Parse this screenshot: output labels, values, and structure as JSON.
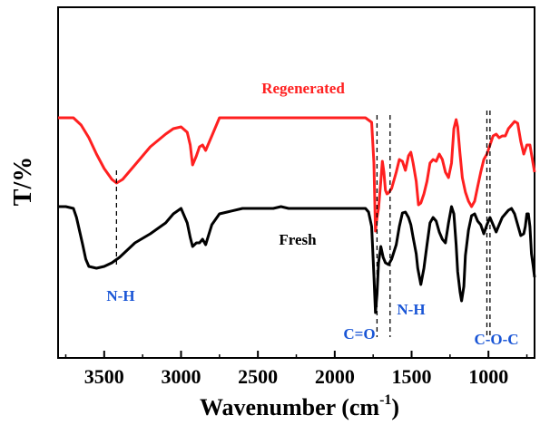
{
  "chart_data": {
    "type": "line",
    "title": "",
    "xlabel": "Wavenumber (cm",
    "xlabel_sup": "-1",
    "xlabel_close": ")",
    "ylabel": "T/%",
    "xlim": [
      3800,
      700
    ],
    "x_reversed": true,
    "y_ticks_shown": false,
    "x_ticks": [
      3500,
      3000,
      2500,
      2000,
      1500,
      1000
    ],
    "x_tick_labels": [
      "3500",
      "3000",
      "2500",
      "2000",
      "1500",
      "1000"
    ],
    "grid": false,
    "legend": "none",
    "series": [
      {
        "name": "Regenerated",
        "color": "#ff2020",
        "x": [
          3800,
          3700,
          3650,
          3600,
          3550,
          3500,
          3450,
          3420,
          3380,
          3300,
          3200,
          3100,
          3050,
          3000,
          2960,
          2940,
          2925,
          2900,
          2880,
          2860,
          2840,
          2800,
          2750,
          2700,
          2600,
          2500,
          2400,
          2350,
          2300,
          2200,
          2100,
          2000,
          1900,
          1800,
          1760,
          1745,
          1735,
          1725,
          1715,
          1700,
          1690,
          1680,
          1670,
          1660,
          1650,
          1630,
          1600,
          1580,
          1560,
          1540,
          1520,
          1505,
          1490,
          1470,
          1455,
          1440,
          1420,
          1400,
          1380,
          1360,
          1340,
          1320,
          1300,
          1280,
          1260,
          1240,
          1225,
          1210,
          1200,
          1185,
          1170,
          1150,
          1130,
          1110,
          1090,
          1070,
          1050,
          1030,
          1010,
          990,
          970,
          950,
          930,
          910,
          890,
          870,
          850,
          830,
          810,
          790,
          770,
          750,
          730,
          710,
          700
        ],
        "y": [
          130,
          130,
          138,
          152,
          170,
          186,
          198,
          202,
          198,
          182,
          162,
          148,
          142,
          140,
          146,
          160,
          182,
          172,
          162,
          160,
          166,
          150,
          130,
          130,
          130,
          130,
          130,
          130,
          130,
          130,
          130,
          130,
          130,
          130,
          135,
          180,
          255,
          240,
          230,
          200,
          178,
          190,
          210,
          214,
          213,
          208,
          190,
          176,
          178,
          188,
          172,
          168,
          180,
          200,
          226,
          224,
          214,
          200,
          180,
          176,
          178,
          170,
          176,
          190,
          196,
          180,
          142,
          132,
          140,
          170,
          196,
          212,
          222,
          228,
          222,
          206,
          190,
          176,
          170,
          160,
          150,
          148,
          152,
          150,
          150,
          142,
          138,
          134,
          136,
          156,
          170,
          160,
          160,
          180,
          190
        ],
        "label": "Regenerated"
      },
      {
        "name": "Fresh",
        "color": "#000000",
        "x": [
          3800,
          3750,
          3700,
          3680,
          3660,
          3640,
          3620,
          3600,
          3550,
          3500,
          3450,
          3400,
          3350,
          3300,
          3200,
          3100,
          3050,
          3000,
          2960,
          2940,
          2925,
          2900,
          2880,
          2860,
          2840,
          2800,
          2750,
          2700,
          2600,
          2500,
          2400,
          2350,
          2300,
          2200,
          2100,
          2000,
          1900,
          1800,
          1780,
          1760,
          1745,
          1735,
          1725,
          1715,
          1700,
          1685,
          1670,
          1650,
          1630,
          1600,
          1580,
          1560,
          1540,
          1520,
          1505,
          1490,
          1470,
          1460,
          1440,
          1420,
          1400,
          1380,
          1360,
          1340,
          1320,
          1300,
          1280,
          1260,
          1240,
          1225,
          1210,
          1200,
          1185,
          1175,
          1160,
          1150,
          1130,
          1110,
          1090,
          1070,
          1050,
          1030,
          1010,
          990,
          970,
          950,
          930,
          910,
          890,
          870,
          850,
          830,
          810,
          790,
          770,
          760,
          750,
          740,
          730,
          720,
          710,
          700
        ],
        "y": [
          228,
          228,
          230,
          240,
          255,
          270,
          286,
          294,
          296,
          294,
          290,
          284,
          276,
          268,
          258,
          246,
          236,
          230,
          246,
          262,
          272,
          268,
          268,
          264,
          270,
          248,
          236,
          234,
          230,
          230,
          230,
          228,
          230,
          230,
          230,
          230,
          230,
          230,
          234,
          250,
          304,
          345,
          325,
          290,
          272,
          284,
          290,
          292,
          286,
          270,
          250,
          235,
          234,
          240,
          248,
          262,
          280,
          296,
          314,
          296,
          270,
          246,
          240,
          244,
          256,
          264,
          268,
          246,
          228,
          236,
          270,
          300,
          322,
          332,
          316,
          282,
          254,
          238,
          236,
          244,
          248,
          258,
          248,
          240,
          248,
          256,
          248,
          240,
          236,
          232,
          230,
          236,
          248,
          260,
          258,
          250,
          236,
          236,
          250,
          280,
          292,
          306
        ]
      }
    ],
    "annotations": [
      {
        "text": "Regenerated",
        "color": "#ff2020"
      },
      {
        "text": "Fresh",
        "color": "#000000"
      },
      {
        "text": "N-H",
        "color": "#1a56d6"
      },
      {
        "text": "C=O",
        "color": "#1a56d6"
      },
      {
        "text": "N-H",
        "color": "#1a56d6"
      },
      {
        "text": "C-O-C",
        "color": "#1a56d6"
      }
    ]
  }
}
